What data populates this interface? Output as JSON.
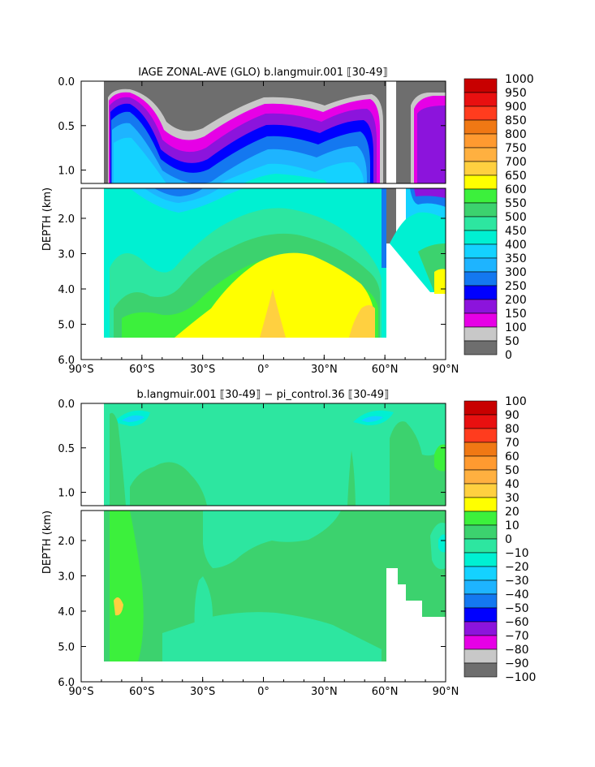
{
  "chart_data": [
    {
      "type": "heatmap",
      "title": "IAGE ZONAL-AVE (GLO) b.langmuir.001 ⟦30-49⟧",
      "ylabel": "DEPTH (km)",
      "xlabel": "",
      "x_ticks": [
        "90°S",
        "60°S",
        "30°S",
        "0°",
        "30°N",
        "60°N",
        "90°N"
      ],
      "y_ticks_upper": [
        "0.0",
        "0.5",
        "1.0"
      ],
      "y_ticks_lower": [
        "2.0",
        "3.0",
        "4.0",
        "5.0",
        "6.0"
      ],
      "xlim": [
        -90,
        90
      ],
      "ylim_upper": [
        0,
        1.15
      ],
      "ylim_lower": [
        1.15,
        6.0
      ],
      "colorbar_labels": [
        "1000",
        "950",
        "900",
        "850",
        "800",
        "750",
        "700",
        "650",
        "600",
        "550",
        "500",
        "450",
        "400",
        "350",
        "300",
        "250",
        "200",
        "150",
        "100",
        "50",
        "0"
      ],
      "colorbar_colors": [
        "#c80000",
        "#e81010",
        "#ff3c1e",
        "#f07814",
        "#ff9a30",
        "#ffb040",
        "#ffd040",
        "#ffff00",
        "#3cf03c",
        "#3cd26e",
        "#2de6a0",
        "#00f0d2",
        "#14d2ff",
        "#1eb4ff",
        "#1478f0",
        "#0000ff",
        "#8c14dc",
        "#e600e6",
        "#c8c8c8",
        "#6e6e6e"
      ]
    },
    {
      "type": "heatmap",
      "title": "b.langmuir.001 ⟦30-49⟧ − pi_control.36 ⟦30-49⟧",
      "ylabel": "DEPTH (km)",
      "xlabel": "",
      "x_ticks": [
        "90°S",
        "60°S",
        "30°S",
        "0°",
        "30°N",
        "60°N",
        "90°N"
      ],
      "y_ticks_upper": [
        "0.0",
        "0.5",
        "1.0"
      ],
      "y_ticks_lower": [
        "2.0",
        "3.0",
        "4.0",
        "5.0",
        "6.0"
      ],
      "xlim": [
        -90,
        90
      ],
      "ylim_upper": [
        0,
        1.15
      ],
      "ylim_lower": [
        1.15,
        6.0
      ],
      "colorbar_labels": [
        "100",
        "90",
        "80",
        "70",
        "60",
        "50",
        "40",
        "30",
        "20",
        "10",
        "0",
        "−10",
        "−20",
        "−30",
        "−40",
        "−50",
        "−60",
        "−70",
        "−80",
        "−90",
        "−100"
      ],
      "colorbar_colors": [
        "#c80000",
        "#e81010",
        "#ff3c1e",
        "#f07814",
        "#ff9a30",
        "#ffb040",
        "#ffd040",
        "#ffff00",
        "#3cf03c",
        "#3cd26e",
        "#2de6a0",
        "#00f0d2",
        "#14d2ff",
        "#1eb4ff",
        "#1478f0",
        "#0000ff",
        "#8c14dc",
        "#e600e6",
        "#c8c8c8",
        "#6e6e6e"
      ]
    }
  ]
}
